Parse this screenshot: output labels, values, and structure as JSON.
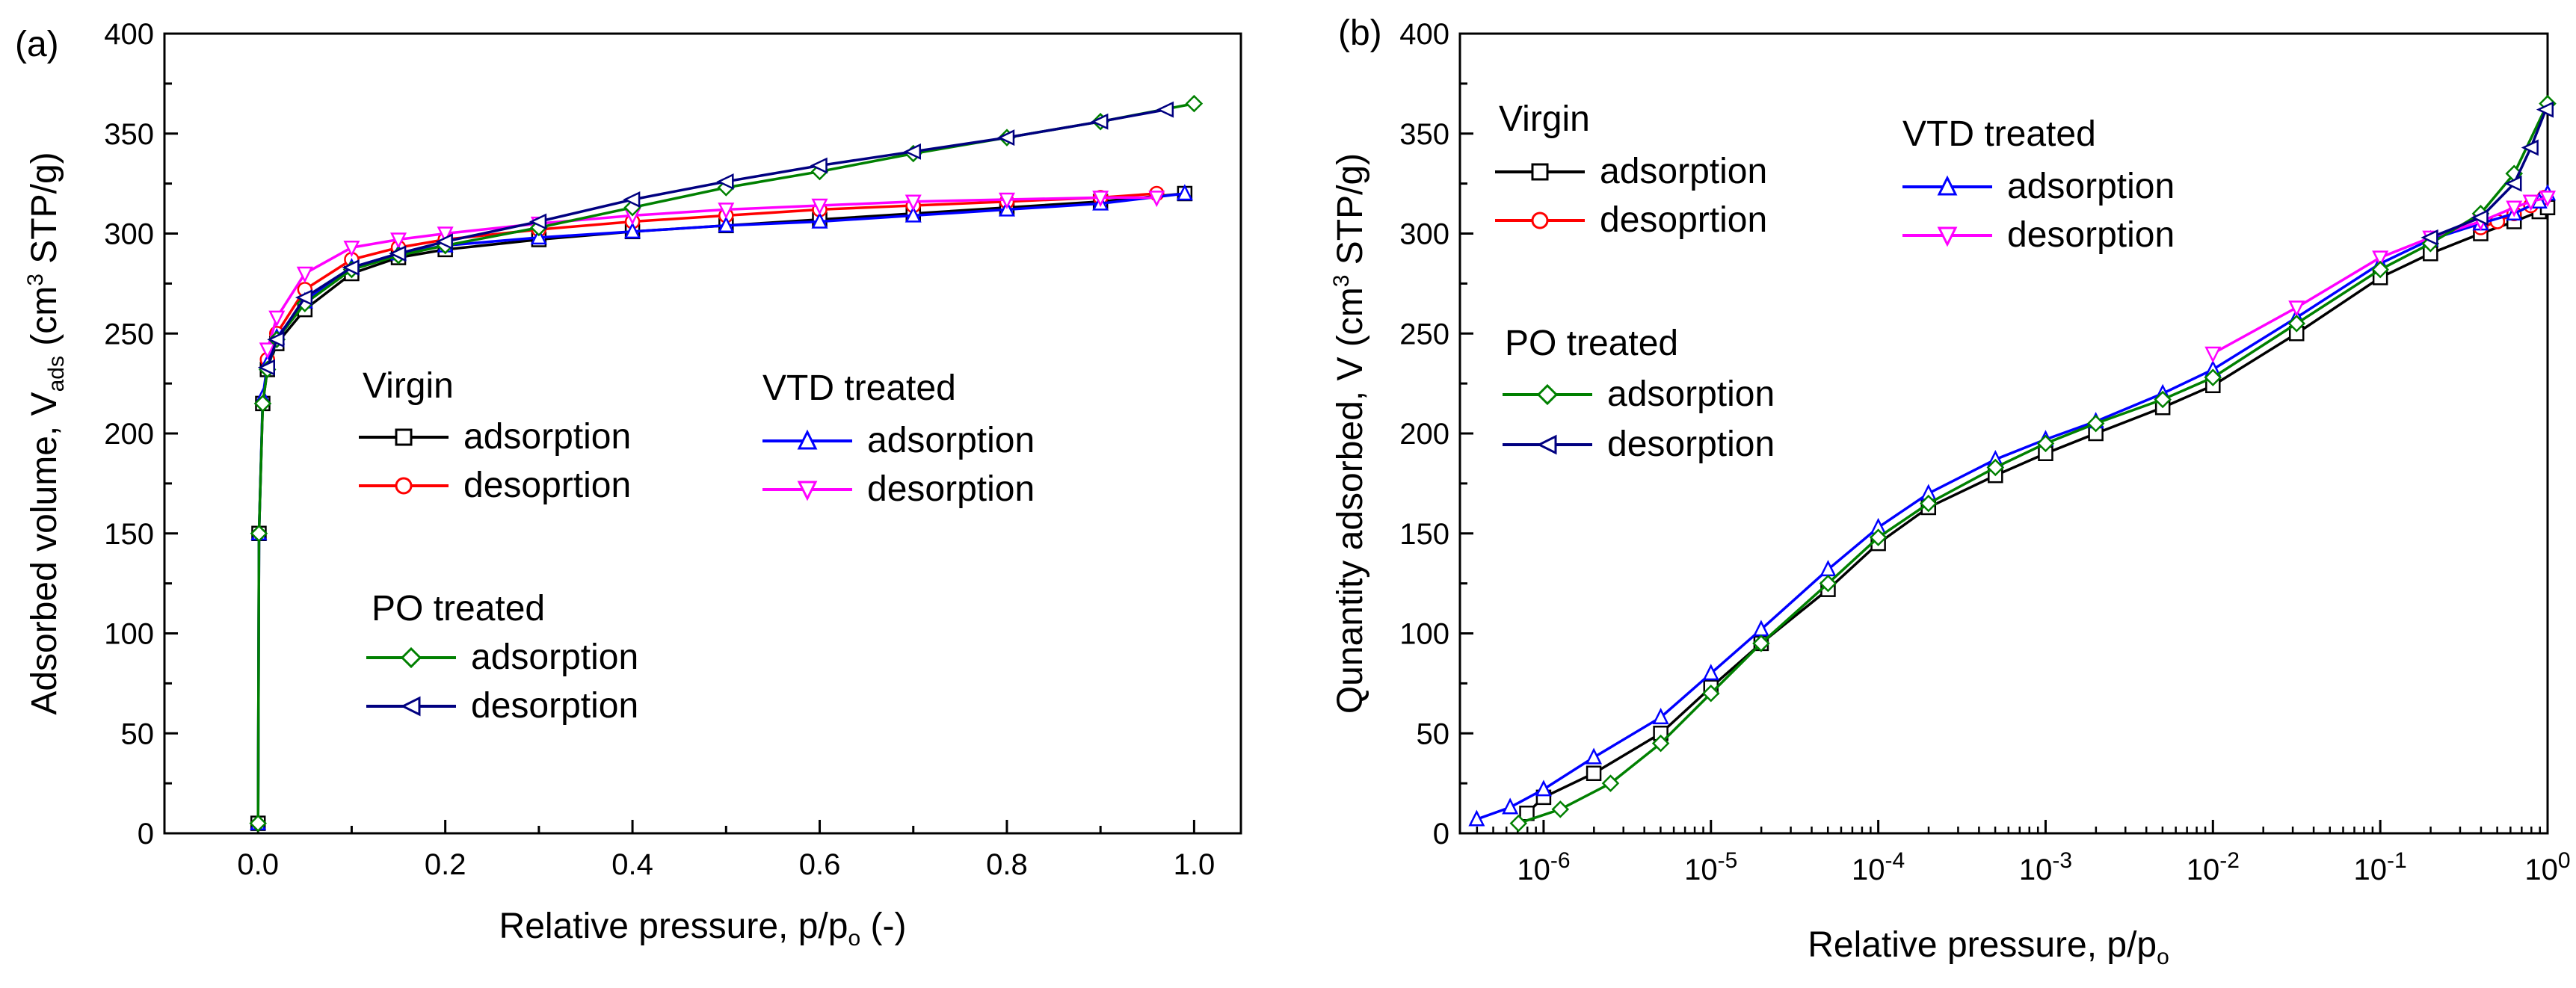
{
  "chart_data": [
    {
      "type": "line",
      "panel_label": "(a)",
      "xlabel_main": "Relative pressure, p/p",
      "xlabel_sub": "o",
      "xlabel_tail": " (-)",
      "ylabel_pre": "Adsorbed volume, V",
      "ylabel_sub": "ads",
      "ylabel_mid": " (cm",
      "ylabel_sup": "3",
      "ylabel_post": " STP/g)",
      "xlim": [
        -0.1,
        1.05
      ],
      "ylim": [
        0,
        400
      ],
      "x_ticks": [
        "0.0",
        "0.2",
        "0.4",
        "0.6",
        "0.8",
        "1.0"
      ],
      "x_tick_values": [
        0,
        0.2,
        0.4,
        0.6,
        0.8,
        1.0
      ],
      "y_ticks": [
        "0",
        "50",
        "100",
        "150",
        "200",
        "250",
        "300",
        "350",
        "400"
      ],
      "y_tick_values": [
        0,
        50,
        100,
        150,
        200,
        250,
        300,
        350,
        400
      ],
      "legend_groups": [
        {
          "title": "Virgin",
          "entries": [
            "adsorption",
            "desoprtion"
          ]
        },
        {
          "title": "VTD treated",
          "entries": [
            "adsorption",
            "desorption"
          ]
        },
        {
          "title": "PO treated",
          "entries": [
            "adsorption",
            "desorption"
          ]
        }
      ],
      "series": [
        {
          "name": "Virgin adsorption",
          "color": "#000000",
          "marker": "square",
          "x": [
            0.0,
            0.001,
            0.005,
            0.01,
            0.02,
            0.05,
            0.1,
            0.15,
            0.2,
            0.3,
            0.4,
            0.5,
            0.6,
            0.7,
            0.8,
            0.9,
            0.99
          ],
          "y": [
            5,
            150,
            215,
            232,
            245,
            262,
            280,
            288,
            292,
            297,
            301,
            304,
            307,
            310,
            313,
            316,
            320
          ]
        },
        {
          "name": "Virgin desoprtion",
          "color": "#ff0000",
          "marker": "circle",
          "x": [
            0.96,
            0.9,
            0.8,
            0.7,
            0.6,
            0.5,
            0.4,
            0.3,
            0.2,
            0.15,
            0.1,
            0.05,
            0.02,
            0.01
          ],
          "y": [
            320,
            318,
            316,
            314,
            312,
            309,
            306,
            302,
            297,
            293,
            287,
            272,
            250,
            237
          ]
        },
        {
          "name": "VTD adsorption",
          "color": "#0000ff",
          "marker": "triangle-up",
          "x": [
            0.0,
            0.001,
            0.005,
            0.01,
            0.02,
            0.05,
            0.1,
            0.15,
            0.2,
            0.3,
            0.4,
            0.5,
            0.6,
            0.7,
            0.8,
            0.9,
            0.99
          ],
          "y": [
            5,
            150,
            218,
            235,
            248,
            266,
            283,
            290,
            294,
            298,
            301,
            304,
            306,
            309,
            312,
            315,
            320
          ]
        },
        {
          "name": "VTD desorption",
          "color": "#ff00ff",
          "marker": "triangle-down",
          "x": [
            0.96,
            0.9,
            0.8,
            0.7,
            0.6,
            0.5,
            0.4,
            0.3,
            0.2,
            0.15,
            0.1,
            0.05,
            0.02,
            0.01
          ],
          "y": [
            318,
            318,
            317,
            316,
            314,
            312,
            309,
            305,
            300,
            297,
            293,
            280,
            258,
            242
          ]
        },
        {
          "name": "PO adsorption",
          "color": "#008000",
          "marker": "diamond",
          "x": [
            0.0,
            0.001,
            0.005,
            0.01,
            0.02,
            0.05,
            0.1,
            0.15,
            0.2,
            0.3,
            0.4,
            0.5,
            0.6,
            0.7,
            0.8,
            0.9,
            1.0
          ],
          "y": [
            5,
            150,
            215,
            232,
            247,
            265,
            282,
            289,
            294,
            303,
            313,
            323,
            331,
            340,
            348,
            356,
            365
          ]
        },
        {
          "name": "PO desorption",
          "color": "#000080",
          "marker": "triangle-left",
          "x": [
            0.97,
            0.9,
            0.8,
            0.7,
            0.6,
            0.5,
            0.4,
            0.3,
            0.2,
            0.15,
            0.1,
            0.05,
            0.02,
            0.01
          ],
          "y": [
            362,
            356,
            348,
            341,
            334,
            326,
            317,
            306,
            296,
            290,
            283,
            268,
            247,
            233
          ]
        }
      ]
    },
    {
      "type": "line",
      "panel_label": "(b)",
      "xscale": "log",
      "xlabel_main": "Relative pressure, p/p",
      "xlabel_sub": "o",
      "ylabel_pre": "Qunantity adsorbed, V (cm",
      "ylabel_sup": "3",
      "ylabel_post": " STP/g)",
      "xlim_log10": [
        -6.5,
        0
      ],
      "ylim": [
        0,
        400
      ],
      "x_ticks": [
        {
          "base": "10",
          "exp": "-6",
          "log10": -6
        },
        {
          "base": "10",
          "exp": "-5",
          "log10": -5
        },
        {
          "base": "10",
          "exp": "-4",
          "log10": -4
        },
        {
          "base": "10",
          "exp": "-3",
          "log10": -3
        },
        {
          "base": "10",
          "exp": "-2",
          "log10": -2
        },
        {
          "base": "10",
          "exp": "-1",
          "log10": -1
        },
        {
          "base": "10",
          "exp": "0",
          "log10": 0
        }
      ],
      "y_ticks": [
        "0",
        "50",
        "100",
        "150",
        "200",
        "250",
        "300",
        "350",
        "400"
      ],
      "y_tick_values": [
        0,
        50,
        100,
        150,
        200,
        250,
        300,
        350,
        400
      ],
      "legend_groups": [
        {
          "title": "Virgin",
          "entries": [
            "adsorption",
            "desoprtion"
          ]
        },
        {
          "title": "VTD treated",
          "entries": [
            "adsorption",
            "desorption"
          ]
        },
        {
          "title": "PO treated",
          "entries": [
            "adsorption",
            "desorption"
          ]
        }
      ],
      "series": [
        {
          "name": "Virgin adsorption",
          "color": "#000000",
          "marker": "square",
          "log10x": [
            -6.1,
            -6.0,
            -5.7,
            -5.3,
            -5.0,
            -4.7,
            -4.3,
            -4.0,
            -3.7,
            -3.3,
            -3.0,
            -2.7,
            -2.3,
            -2.0,
            -1.5,
            -1.0,
            -0.7,
            -0.4,
            -0.2,
            -0.05,
            0.0
          ],
          "y": [
            10,
            18,
            30,
            50,
            73,
            95,
            122,
            145,
            163,
            179,
            190,
            200,
            213,
            224,
            250,
            278,
            290,
            300,
            306,
            311,
            313
          ]
        },
        {
          "name": "Virgin desoprtion",
          "color": "#ff0000",
          "marker": "circle",
          "log10x": [
            -0.02,
            -0.1,
            -0.2,
            -0.3,
            -0.4
          ],
          "y": [
            318,
            314,
            310,
            306,
            303
          ]
        },
        {
          "name": "VTD adsorption",
          "color": "#0000ff",
          "marker": "triangle-up",
          "log10x": [
            -6.4,
            -6.2,
            -6.0,
            -5.7,
            -5.3,
            -5.0,
            -4.7,
            -4.3,
            -4.0,
            -3.7,
            -3.3,
            -3.0,
            -2.7,
            -2.3,
            -2.0,
            -1.5,
            -1.0,
            -0.7,
            -0.4,
            -0.2,
            -0.05,
            0.0
          ],
          "y": [
            7,
            13,
            22,
            38,
            58,
            80,
            102,
            132,
            153,
            170,
            187,
            197,
            206,
            220,
            232,
            258,
            285,
            297,
            305,
            310,
            316,
            320
          ]
        },
        {
          "name": "VTD desorption",
          "color": "#ff00ff",
          "marker": "triangle-down",
          "log10x": [
            0.0,
            -0.1,
            -0.2,
            -0.4,
            -0.7,
            -1.0,
            -1.5,
            -2.0
          ],
          "y": [
            318,
            316,
            313,
            306,
            298,
            288,
            263,
            240
          ]
        },
        {
          "name": "PO adsorption",
          "color": "#008000",
          "marker": "diamond",
          "log10x": [
            -6.15,
            -5.9,
            -5.6,
            -5.3,
            -5.0,
            -4.7,
            -4.3,
            -4.0,
            -3.7,
            -3.3,
            -3.0,
            -2.7,
            -2.3,
            -2.0,
            -1.5,
            -1.0,
            -0.7,
            -0.4,
            -0.2,
            0.0
          ],
          "y": [
            5,
            12,
            25,
            45,
            70,
            95,
            125,
            148,
            165,
            183,
            195,
            205,
            217,
            228,
            255,
            282,
            295,
            310,
            330,
            365
          ]
        },
        {
          "name": "PO desorption",
          "color": "#000080",
          "marker": "triangle-left",
          "log10x": [
            -0.01,
            -0.1,
            -0.2,
            -0.4,
            -0.7
          ],
          "y": [
            362,
            343,
            325,
            308,
            298
          ]
        }
      ]
    }
  ]
}
